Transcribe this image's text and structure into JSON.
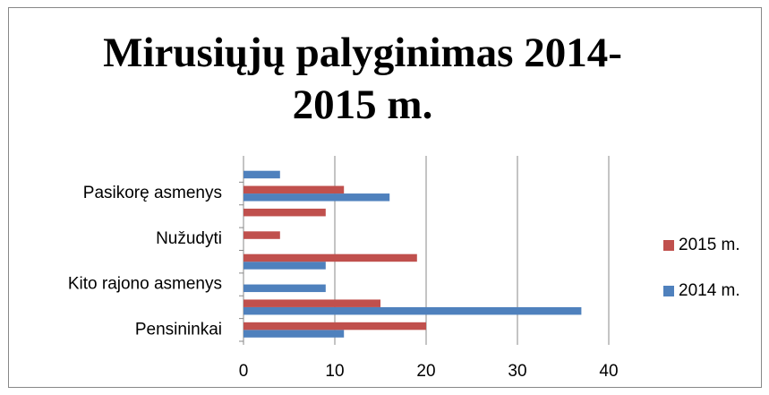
{
  "chart_data": {
    "type": "hbar",
    "title": "Mirusiųjų palyginimas 2014-2015 m.",
    "categories": [
      "Pensininkai",
      null,
      "Kito rajono asmenys",
      null,
      "Nužudyti",
      null,
      "Pasikorę asmenys",
      null
    ],
    "series": [
      {
        "name": "2014 m.",
        "color": "#4f81bd",
        "values": [
          11,
          37,
          9,
          9,
          0,
          0,
          16,
          4
        ]
      },
      {
        "name": "2015 m.",
        "color": "#c0504d",
        "values": [
          20,
          15,
          0,
          19,
          4,
          9,
          11,
          0
        ]
      }
    ],
    "xlim": [
      0,
      40
    ],
    "xticks": [
      0,
      10,
      20,
      30,
      40
    ],
    "grid": true,
    "legend": "right"
  }
}
